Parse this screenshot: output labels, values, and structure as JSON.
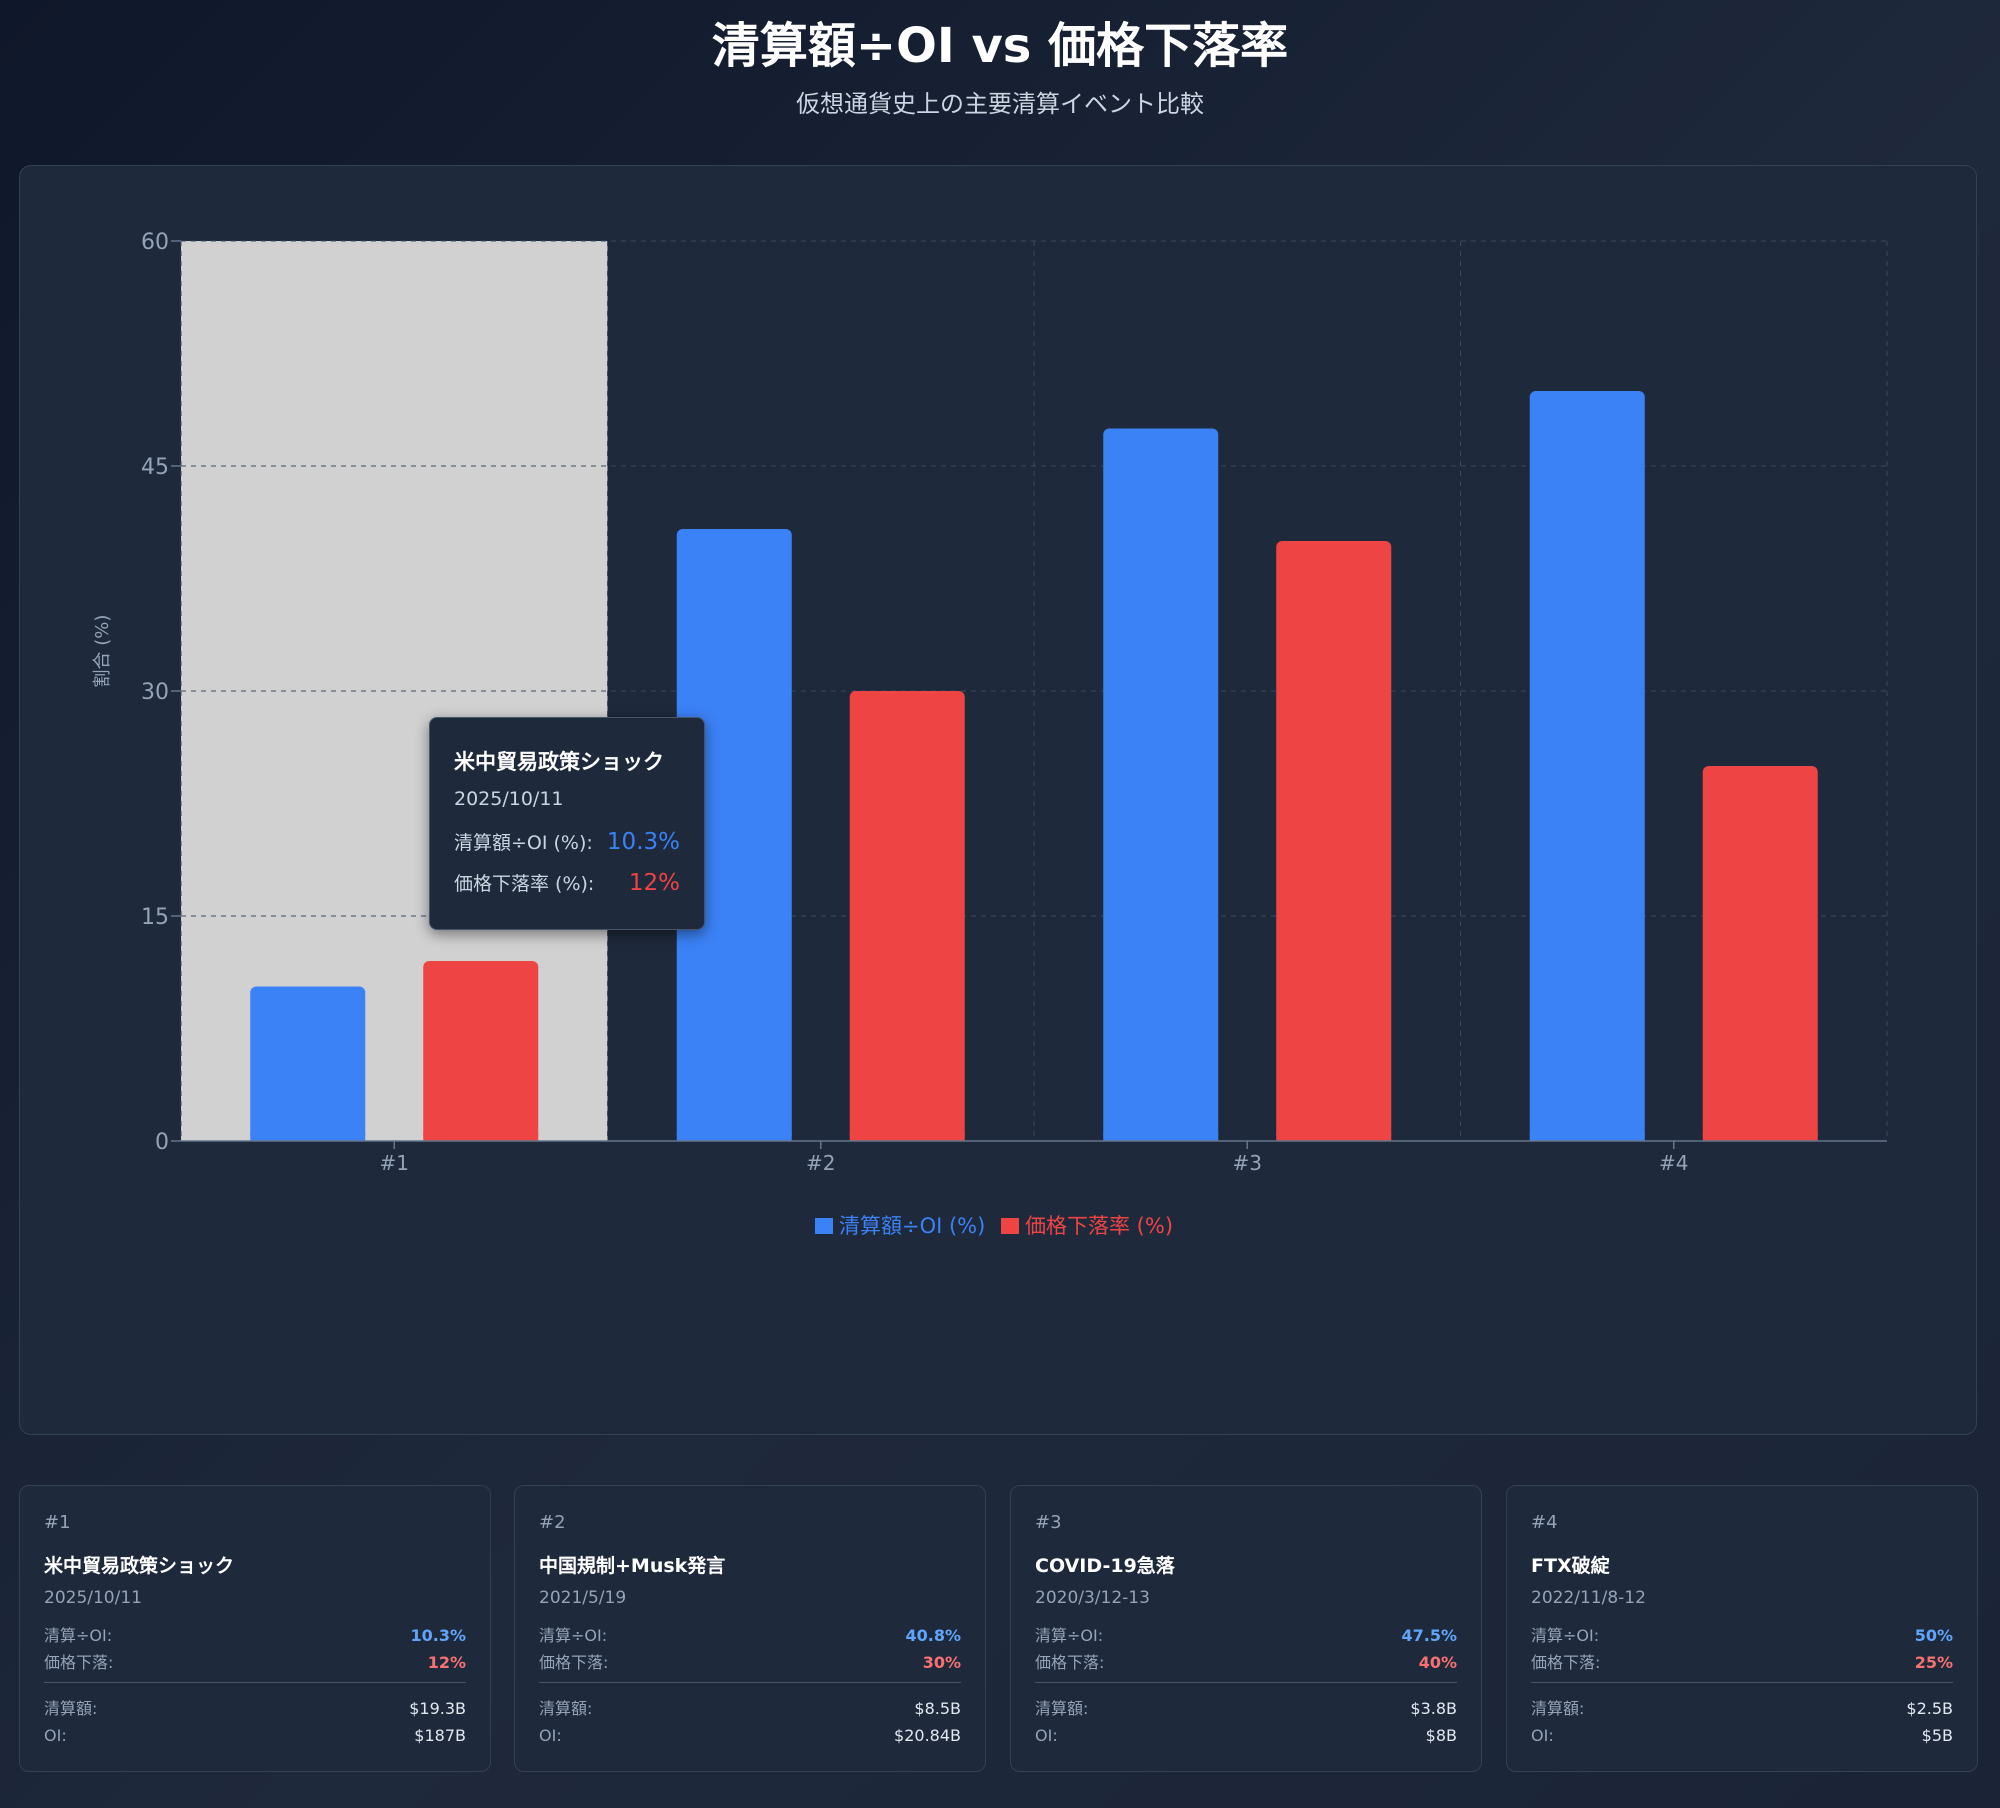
{
  "header": {
    "title": "清算額÷OI vs 価格下落率",
    "subtitle": "仮想通貨史上の主要清算イベント比較"
  },
  "colors": {
    "ratio": "#3b82f6",
    "drop": "#ef4444",
    "highlight": "#d1d1d1"
  },
  "chart_data": {
    "type": "bar",
    "categories": [
      "#1",
      "#2",
      "#3",
      "#4"
    ],
    "series": [
      {
        "name": "清算額÷OI (%)",
        "color": "#3b82f6",
        "values": [
          10.3,
          40.8,
          47.5,
          50
        ]
      },
      {
        "name": "価格下落率 (%)",
        "color": "#ef4444",
        "values": [
          12,
          30,
          40,
          25
        ]
      }
    ],
    "ylabel": "割合 (%)",
    "ylim": [
      0,
      60
    ],
    "yticks": [
      0,
      15,
      30,
      45,
      60
    ],
    "grid": true,
    "legend": "bottom-center",
    "highlight_category_index": 0
  },
  "tooltip": {
    "title": "米中貿易政策ショック",
    "date": "2025/10/11",
    "ratio_label": "清算額÷OI (%):",
    "ratio_value": "10.3%",
    "drop_label": "価格下落率 (%):",
    "drop_value": "12%"
  },
  "labels": {
    "ratio": "清算÷OI:",
    "drop": "価格下落:",
    "amount": "清算額:",
    "oi": "OI:"
  },
  "events": [
    {
      "rank": "#1",
      "name": "米中貿易政策ショック",
      "date": "2025/10/11",
      "ratio": "10.3%",
      "drop": "12%",
      "amount": "$19.3B",
      "oi": "$187B"
    },
    {
      "rank": "#2",
      "name": "中国規制+Musk発言",
      "date": "2021/5/19",
      "ratio": "40.8%",
      "drop": "30%",
      "amount": "$8.5B",
      "oi": "$20.84B"
    },
    {
      "rank": "#3",
      "name": "COVID-19急落",
      "date": "2020/3/12-13",
      "ratio": "47.5%",
      "drop": "40%",
      "amount": "$3.8B",
      "oi": "$8B"
    },
    {
      "rank": "#4",
      "name": "FTX破綻",
      "date": "2022/11/8-12",
      "ratio": "50%",
      "drop": "25%",
      "amount": "$2.5B",
      "oi": "$5B"
    }
  ]
}
